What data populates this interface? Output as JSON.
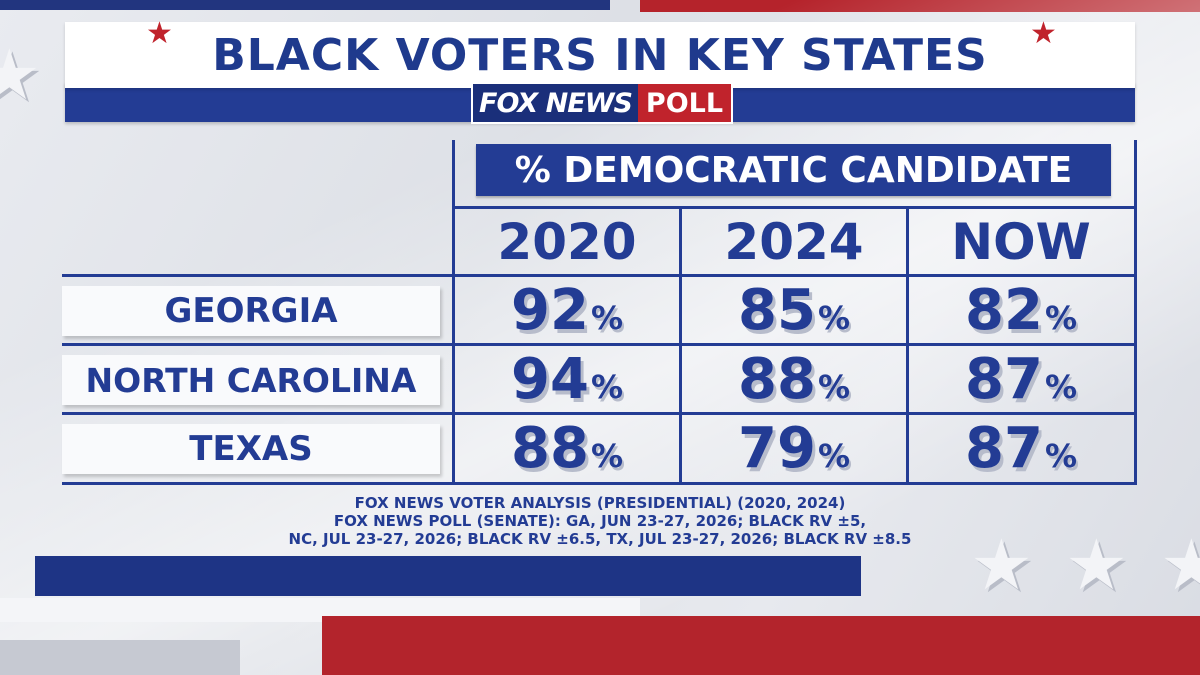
{
  "title": "BLACK VOTERS IN KEY STATES",
  "logo": {
    "network": "FOX NEWS",
    "label": "POLL"
  },
  "table_header": "% DEMOCRATIC CANDIDATE",
  "chart_data": {
    "type": "table",
    "title": "BLACK VOTERS IN KEY STATES",
    "subtitle": "% DEMOCRATIC CANDIDATE",
    "columns": [
      "2020",
      "2024",
      "NOW"
    ],
    "rows": [
      {
        "label": "GEORGIA",
        "values": [
          92,
          85,
          82
        ]
      },
      {
        "label": "NORTH CAROLINA",
        "values": [
          94,
          88,
          87
        ]
      },
      {
        "label": "TEXAS",
        "values": [
          88,
          79,
          87
        ]
      }
    ],
    "unit": "%"
  },
  "source_lines": [
    "FOX NEWS VOTER ANALYSIS (PRESIDENTIAL) (2020, 2024)",
    "FOX NEWS POLL (SENATE): GA, JUN 23-27, 2026; BLACK RV ±5,",
    "NC, JUL 23-27, 2026; BLACK RV ±6.5, TX, JUL 23-27, 2026; BLACK RV ±8.5"
  ],
  "colors": {
    "navy": "#233c94",
    "red": "#c0232c",
    "white": "#ffffff"
  },
  "icons": {
    "title_star": "star-icon",
    "background_star": "star-icon"
  }
}
